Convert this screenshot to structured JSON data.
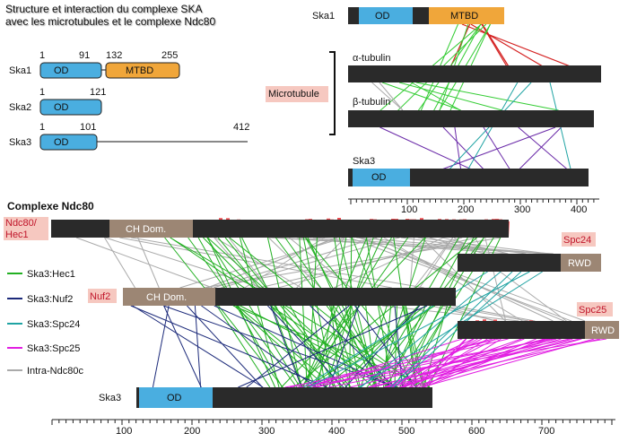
{
  "header": {
    "title_line1": "Structure et interaction du complexe SKA",
    "title_line2": "avec les microtubules et le complexe Ndc80"
  },
  "domain_map": {
    "ska1": {
      "label": "Ska1",
      "positions": [
        "1",
        "91",
        "132",
        "255"
      ],
      "domains": [
        "OD",
        "MTBD"
      ]
    },
    "ska2": {
      "label": "Ska2",
      "positions": [
        "1",
        "121"
      ],
      "domains": [
        "OD"
      ]
    },
    "ska3": {
      "label": "Ska3",
      "positions": [
        "1",
        "101",
        "412"
      ],
      "domains": [
        "OD"
      ]
    }
  },
  "microtubule_panel": {
    "ska1": {
      "label": "Ska1",
      "domains": [
        "OD",
        "MTBD"
      ]
    },
    "alpha_tubulin": "α-tubulin",
    "beta_tubulin": "β-tubulin",
    "microtubule": "Microtubule",
    "ska3": {
      "label": "Ska3",
      "domains": [
        "OD"
      ]
    },
    "axis_ticks": [
      "100",
      "200",
      "300",
      "400"
    ]
  },
  "ndc80_panel": {
    "title": "Complexe Ndc80",
    "hec1": {
      "label_lines": [
        "Ndc80/",
        "Hec1"
      ],
      "domain": "CH Dom."
    },
    "spc24": {
      "label": "Spc24",
      "domain": "RWD"
    },
    "nuf2": {
      "label": "Nuf2",
      "domain": "CH Dom."
    },
    "spc25": {
      "label": "Spc25",
      "domain": "RWD"
    },
    "ska3": {
      "label": "Ska3",
      "domain": "OD"
    },
    "legend": [
      "Ska3:Hec1",
      "Ska3:Nuf2",
      "Ska3:Spc24",
      "Ska3:Spc25",
      "Intra-Ndc80c"
    ],
    "axis_ticks": [
      "100",
      "200",
      "300",
      "400",
      "500",
      "600",
      "700"
    ]
  }
}
